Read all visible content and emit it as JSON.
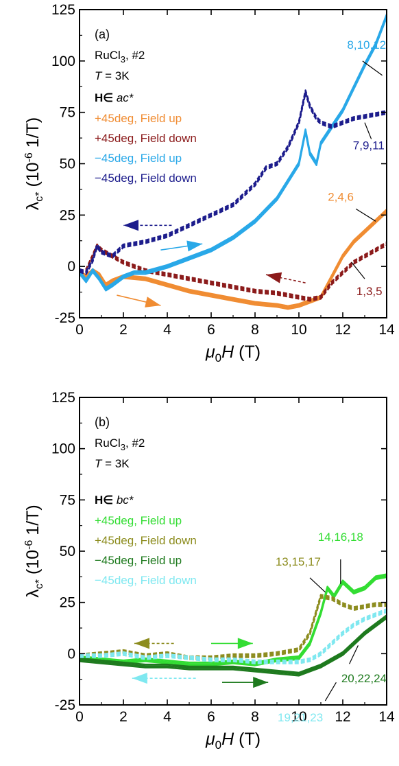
{
  "chart_data": [
    {
      "type": "line",
      "panel_label": "(a)",
      "sample": "RuCl3, #2",
      "temperature": "T = 3K",
      "field_dir": "H∈ ac*",
      "xlabel": "μ0H (T)",
      "ylabel": "λc* (10^-6 1/T)",
      "xlim": [
        0,
        14
      ],
      "ylim": [
        -25,
        125
      ],
      "x_ticks": [
        0,
        2,
        4,
        6,
        8,
        10,
        12,
        14
      ],
      "y_ticks": [
        -25,
        0,
        25,
        50,
        75,
        100,
        125
      ],
      "grid": false,
      "legend_position": "top-left",
      "series": [
        {
          "name": "+45deg, Field up",
          "color": "#f08c32",
          "dashed": false,
          "curves": "2,4,6",
          "x": [
            0,
            0.3,
            0.6,
            0.9,
            1.2,
            1.5,
            2,
            3,
            4,
            5,
            6,
            7,
            8,
            9,
            9.5,
            10,
            10.5,
            11,
            11.5,
            12,
            12.5,
            13,
            13.5,
            14
          ],
          "y": [
            -3,
            -5,
            -2,
            -4,
            -9,
            -7,
            -5,
            -6,
            -9,
            -12,
            -14,
            -16,
            -18,
            -19,
            -20,
            -19,
            -17,
            -15,
            -5,
            5,
            12,
            17,
            22,
            27
          ]
        },
        {
          "name": "+45deg, Field down",
          "color": "#8b1a1a",
          "dashed": true,
          "curves": "1,3,5",
          "x": [
            0,
            0.3,
            0.6,
            0.8,
            1.0,
            1.5,
            2,
            3,
            4,
            5,
            6,
            7,
            8,
            9,
            10,
            10.5,
            11,
            11.5,
            12,
            12.5,
            13,
            13.5,
            14
          ],
          "y": [
            -3,
            -2,
            5,
            10,
            8,
            5,
            2,
            -2,
            -4,
            -6,
            -8,
            -10,
            -12,
            -13,
            -15,
            -16,
            -15,
            -8,
            -3,
            2,
            5,
            8,
            11
          ]
        },
        {
          "name": "−45deg, Field up",
          "color": "#29a8e8",
          "dashed": false,
          "curves": "8,10,12",
          "x": [
            0,
            0.3,
            0.6,
            0.9,
            1.2,
            1.5,
            2,
            2.5,
            3,
            4,
            5,
            6,
            7,
            8,
            9,
            10,
            10.3,
            10.5,
            10.8,
            11,
            11.5,
            12,
            12.5,
            13,
            13.5,
            14
          ],
          "y": [
            -3,
            -7,
            -2,
            -6,
            -11,
            -9,
            -5,
            -3,
            -3,
            0,
            4,
            8,
            14,
            22,
            33,
            50,
            66,
            55,
            50,
            60,
            68,
            76,
            87,
            98,
            108,
            122
          ]
        },
        {
          "name": "−45deg, Field down",
          "color": "#1c1c8c",
          "dashed": true,
          "curves": "7,9,11",
          "x": [
            0,
            0.3,
            0.6,
            0.8,
            1.0,
            1.5,
            2,
            3,
            4,
            5,
            6,
            7,
            8,
            8.5,
            9,
            9.5,
            10,
            10.3,
            10.5,
            10.8,
            11,
            11.5,
            12,
            12.5,
            13,
            13.5,
            14
          ],
          "y": [
            -2,
            -3,
            3,
            10,
            7,
            5,
            10,
            12,
            15,
            20,
            25,
            30,
            40,
            48,
            50,
            58,
            70,
            85,
            78,
            72,
            70,
            68,
            70,
            72,
            73,
            74,
            75
          ]
        }
      ],
      "annotations": [
        "8,10,12",
        "7,9,11",
        "2,4,6",
        "1,3,5"
      ]
    },
    {
      "type": "line",
      "panel_label": "(b)",
      "sample": "RuCl3, #2",
      "temperature": "T = 3K",
      "field_dir": "H∈ bc*",
      "xlabel": "μ0H (T)",
      "ylabel": "λc* (10^-6 1/T)",
      "xlim": [
        0,
        14
      ],
      "ylim": [
        -25,
        125
      ],
      "x_ticks": [
        0,
        2,
        4,
        6,
        8,
        10,
        12,
        14
      ],
      "y_ticks": [
        -25,
        0,
        25,
        50,
        75,
        100,
        125
      ],
      "grid": false,
      "legend_position": "top-left",
      "series": [
        {
          "name": "+45deg, Field up",
          "color": "#33dd33",
          "dashed": false,
          "curves": "14,16,18",
          "x": [
            0,
            1,
            2,
            3,
            4,
            5,
            6,
            7,
            8,
            9,
            10,
            10.5,
            11,
            11.3,
            11.6,
            12,
            12.5,
            13,
            13.5,
            14
          ],
          "y": [
            -2,
            -3,
            -4,
            -3,
            -4,
            -5,
            -5,
            -4,
            -5,
            -3,
            -2,
            5,
            20,
            32,
            28,
            35,
            30,
            32,
            37,
            38
          ]
        },
        {
          "name": "+45deg, Field down",
          "color": "#8c8c1e",
          "dashed": true,
          "curves": "13,15,17",
          "x": [
            0,
            1,
            2,
            3,
            4,
            5,
            6,
            7,
            8,
            9,
            10,
            10.5,
            11,
            11.5,
            12,
            12.5,
            13,
            13.5,
            14
          ],
          "y": [
            -1,
            0,
            1,
            -1,
            0,
            -2,
            -2,
            -1,
            -1,
            0,
            2,
            10,
            28,
            27,
            24,
            22,
            23,
            24,
            24
          ]
        },
        {
          "name": "−45deg, Field up",
          "color": "#1e7a1e",
          "dashed": false,
          "curves": "20,22,24",
          "x": [
            0,
            1,
            2,
            3,
            4,
            5,
            6,
            7,
            8,
            9,
            10,
            10.5,
            11,
            11.5,
            12,
            12.5,
            13,
            13.5,
            14
          ],
          "y": [
            -3,
            -4,
            -5,
            -6,
            -6,
            -7,
            -7,
            -7,
            -8,
            -9,
            -10,
            -8,
            -6,
            -3,
            0,
            5,
            10,
            14,
            18
          ]
        },
        {
          "name": "−45deg, Field down",
          "color": "#7fe8f0",
          "dashed": true,
          "curves": "19,21,23",
          "x": [
            0,
            1,
            2,
            3,
            4,
            5,
            6,
            7,
            8,
            9,
            10,
            10.5,
            11,
            11.5,
            12,
            12.5,
            13,
            13.5,
            14
          ],
          "y": [
            -1,
            -1,
            0,
            -2,
            -1,
            -2,
            -3,
            -3,
            -4,
            -4,
            -4,
            -3,
            0,
            5,
            10,
            14,
            17,
            19,
            21
          ]
        }
      ],
      "annotations": [
        "14,16,18",
        "13,15,17",
        "20,22,24",
        "19,21,23"
      ]
    }
  ]
}
